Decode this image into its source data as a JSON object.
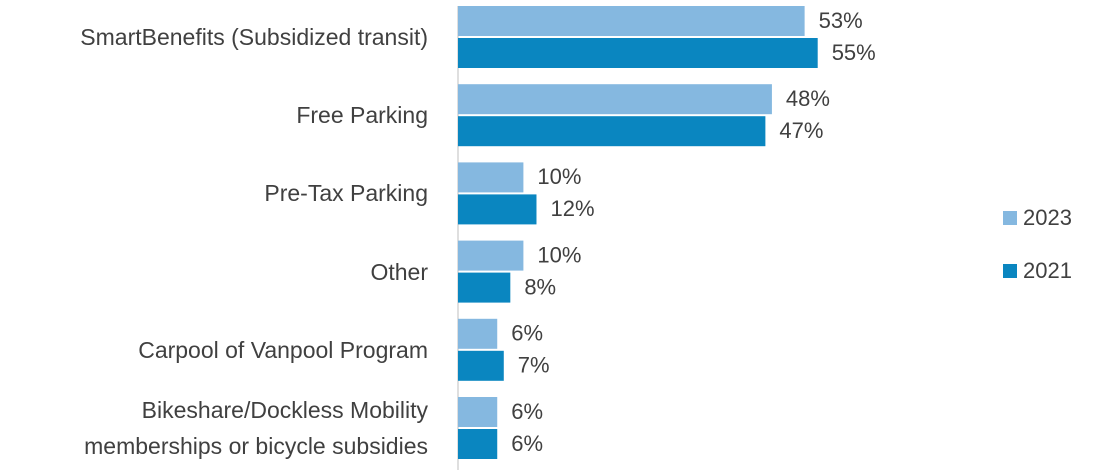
{
  "chart_data": {
    "type": "bar",
    "orientation": "horizontal",
    "categories": [
      "SmartBenefits (Subsidized transit)",
      "Free Parking",
      "Pre-Tax Parking",
      "Other",
      "Carpool of Vanpool Program",
      "Bikeshare/Dockless Mobility\nmemberships or bicycle subsidies"
    ],
    "series": [
      {
        "name": "2023",
        "color": "#85b8e0",
        "values": [
          53,
          48,
          10,
          10,
          6,
          6
        ],
        "value_labels": [
          "53%",
          "48%",
          "10%",
          "10%",
          "6%",
          "6%"
        ]
      },
      {
        "name": "2021",
        "color": "#0a86c0",
        "values": [
          55,
          47,
          12,
          8,
          7,
          6
        ],
        "value_labels": [
          "55%",
          "47%",
          "12%",
          "8%",
          "7%",
          "6%"
        ]
      }
    ],
    "legend": "right"
  }
}
